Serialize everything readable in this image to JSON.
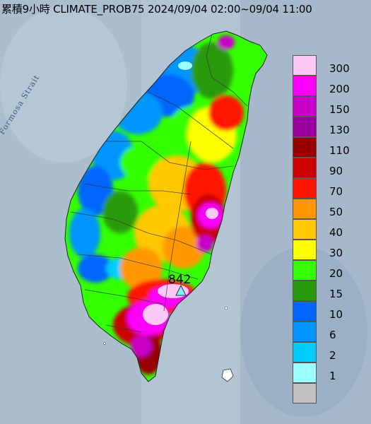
{
  "title": "累積9小時 CLIMATE_PROB75 2024/09/04 02:00~09/04 11:00",
  "strait_label": "Formosa Strait",
  "max_label": "842",
  "legend": [
    {
      "label": "300",
      "color": "#fec8f6"
    },
    {
      "label": "200",
      "color": "#fd00fd"
    },
    {
      "label": "150",
      "color": "#c800c7"
    },
    {
      "label": "130",
      "color": "#9a009b"
    },
    {
      "label": "110",
      "color": "#990000"
    },
    {
      "label": "90",
      "color": "#cc0000"
    },
    {
      "label": "70",
      "color": "#ff1400"
    },
    {
      "label": "50",
      "color": "#ff9800"
    },
    {
      "label": "40",
      "color": "#ffc800"
    },
    {
      "label": "30",
      "color": "#fefe00"
    },
    {
      "label": "20",
      "color": "#33ff00"
    },
    {
      "label": "15",
      "color": "#2a9a0e"
    },
    {
      "label": "10",
      "color": "#0066fe"
    },
    {
      "label": "6",
      "color": "#0195fd"
    },
    {
      "label": "2",
      "color": "#00ccfe"
    },
    {
      "label": "1",
      "color": "#99ffff"
    },
    {
      "label": "",
      "color": "#c1c1c1"
    }
  ]
}
